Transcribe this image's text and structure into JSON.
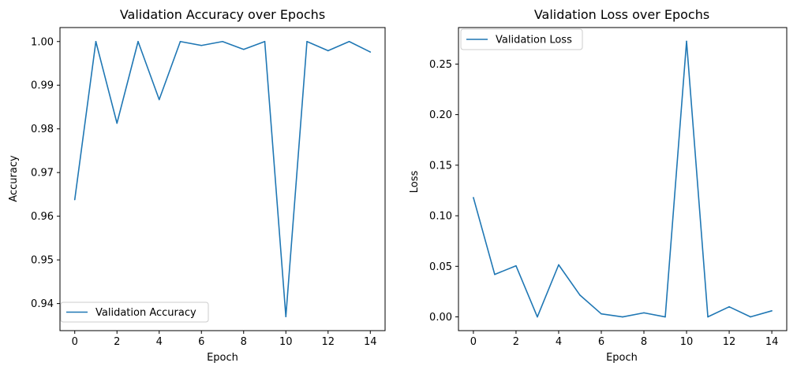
{
  "chart_data": [
    {
      "type": "line",
      "title": "Validation Accuracy over Epochs",
      "xlabel": "Epoch",
      "ylabel": "Accuracy",
      "x": [
        0,
        1,
        2,
        3,
        4,
        5,
        6,
        7,
        8,
        9,
        10,
        11,
        12,
        13,
        14
      ],
      "series": [
        {
          "name": "Validation Accuracy",
          "color": "#1f77b4",
          "values": [
            0.9638,
            1.0,
            0.9813,
            1.0,
            0.9867,
            1.0,
            0.9991,
            1.0,
            0.9982,
            1.0,
            0.937,
            1.0,
            0.9979,
            1.0,
            0.9976
          ]
        }
      ],
      "xlim": [
        -0.7,
        14.7
      ],
      "ylim": [
        0.9338,
        1.0032
      ],
      "xticks": [
        0,
        2,
        4,
        6,
        8,
        10,
        12,
        14
      ],
      "xtick_labels": [
        "0",
        "2",
        "4",
        "6",
        "8",
        "10",
        "12",
        "14"
      ],
      "yticks": [
        0.94,
        0.95,
        0.96,
        0.97,
        0.98,
        0.99,
        1.0
      ],
      "ytick_labels": [
        "0.94",
        "0.95",
        "0.96",
        "0.97",
        "0.98",
        "0.99",
        "1.00"
      ],
      "legend_position": "lower-left",
      "grid": false
    },
    {
      "type": "line",
      "title": "Validation Loss over Epochs",
      "xlabel": "Epoch",
      "ylabel": "Loss",
      "x": [
        0,
        1,
        2,
        3,
        4,
        5,
        6,
        7,
        8,
        9,
        10,
        11,
        12,
        13,
        14
      ],
      "series": [
        {
          "name": "Validation Loss",
          "color": "#1f77b4",
          "values": [
            0.118,
            0.042,
            0.0505,
            0.0,
            0.0515,
            0.0215,
            0.003,
            0.0,
            0.004,
            0.0,
            0.2725,
            0.0,
            0.01,
            0.0,
            0.006
          ]
        }
      ],
      "xlim": [
        -0.7,
        14.7
      ],
      "ylim": [
        -0.0136,
        0.2861
      ],
      "xticks": [
        0,
        2,
        4,
        6,
        8,
        10,
        12,
        14
      ],
      "xtick_labels": [
        "0",
        "2",
        "4",
        "6",
        "8",
        "10",
        "12",
        "14"
      ],
      "yticks": [
        0.0,
        0.05,
        0.1,
        0.15,
        0.2,
        0.25
      ],
      "ytick_labels": [
        "0.00",
        "0.05",
        "0.10",
        "0.15",
        "0.20",
        "0.25"
      ],
      "legend_position": "upper-left",
      "grid": false
    }
  ]
}
